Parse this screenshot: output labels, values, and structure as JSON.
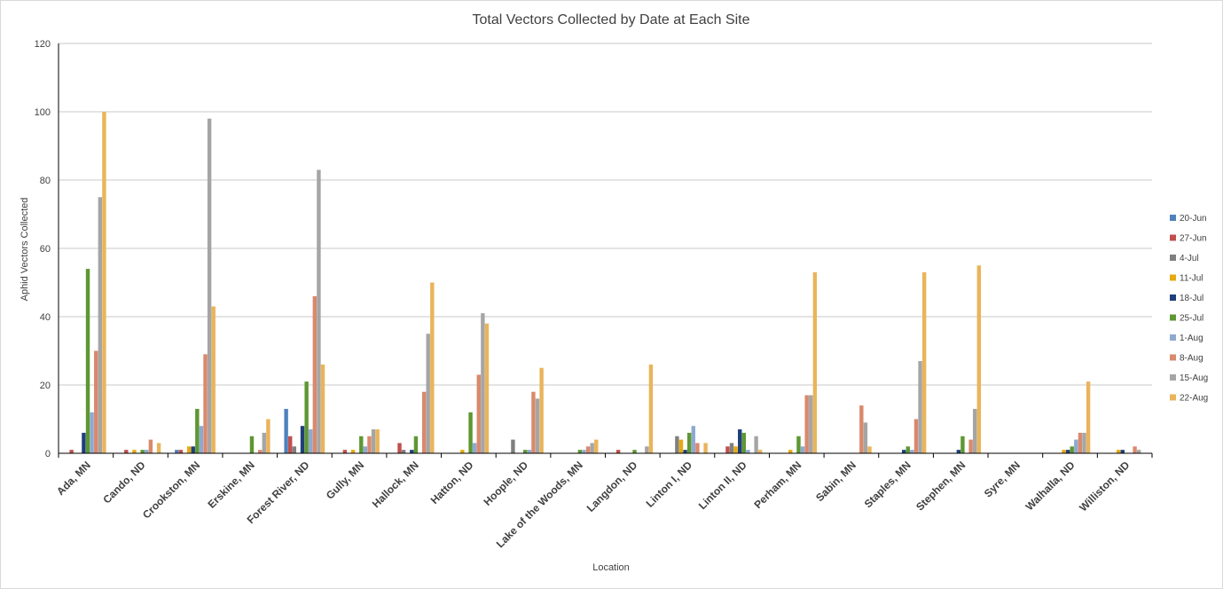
{
  "chart_data": {
    "type": "bar",
    "title": "Total Vectors Collected by Date at Each Site",
    "xlabel": "Location",
    "ylabel": "Aphid Vectors Collected",
    "ylim": [
      0,
      120
    ],
    "yticks": [
      0,
      20,
      40,
      60,
      80,
      100,
      120
    ],
    "grid": true,
    "legend_position": "right",
    "categories": [
      "Ada, MN",
      "Cando, ND",
      "Crookston, MN",
      "Erskine, MN",
      "Forest River, ND",
      "Gully, MN",
      "Hallock, MN",
      "Hatton, ND",
      "Hoople, ND",
      "Lake of the Woods, MN",
      "Langdon, ND",
      "Linton I, ND",
      "Linton II, ND",
      "Perham, MN",
      "Sabin, MN",
      "Staples, MN",
      "Stephen, MN",
      "Syre, MN",
      "Walhalla, ND",
      "Williston, ND"
    ],
    "series": [
      {
        "name": "20-Jun",
        "color": "#4F81BD",
        "values": [
          0,
          0,
          1,
          0,
          13,
          0,
          0,
          0,
          0,
          0,
          0,
          0,
          0,
          0,
          0,
          0,
          0,
          0,
          0,
          0
        ]
      },
      {
        "name": "27-Jun",
        "color": "#C0504D",
        "values": [
          1,
          1,
          1,
          0,
          5,
          1,
          3,
          0,
          0,
          0,
          1,
          0,
          2,
          0,
          0,
          0,
          0,
          0,
          0,
          0
        ]
      },
      {
        "name": "4-Jul",
        "color": "#7F7F7F",
        "values": [
          0,
          0,
          0,
          0,
          2,
          0,
          1,
          0,
          4,
          0,
          0,
          5,
          3,
          0,
          0,
          0,
          0,
          0,
          0,
          0
        ]
      },
      {
        "name": "11-Jul",
        "color": "#E6A911",
        "values": [
          0,
          1,
          2,
          0,
          0,
          1,
          0,
          1,
          0,
          0,
          0,
          4,
          2,
          1,
          0,
          0,
          0,
          0,
          1,
          1
        ]
      },
      {
        "name": "18-Jul",
        "color": "#1F3F7A",
        "values": [
          6,
          0,
          2,
          0,
          8,
          0,
          1,
          0,
          0,
          0,
          0,
          1,
          7,
          0,
          0,
          1,
          1,
          0,
          1,
          1
        ]
      },
      {
        "name": "25-Jul",
        "color": "#5E9732",
        "values": [
          54,
          1,
          13,
          5,
          21,
          5,
          5,
          12,
          1,
          1,
          1,
          6,
          6,
          5,
          0,
          2,
          5,
          0,
          2,
          0
        ]
      },
      {
        "name": "1-Aug",
        "color": "#8EA9D0",
        "values": [
          12,
          1,
          8,
          0,
          7,
          2,
          0,
          3,
          1,
          1,
          0,
          8,
          1,
          2,
          0,
          1,
          0,
          0,
          4,
          0
        ]
      },
      {
        "name": "8-Aug",
        "color": "#D9896C",
        "values": [
          30,
          4,
          29,
          1,
          46,
          5,
          18,
          23,
          18,
          2,
          0,
          3,
          0,
          17,
          14,
          10,
          4,
          0,
          6,
          2
        ]
      },
      {
        "name": "15-Aug",
        "color": "#A5A5A5",
        "values": [
          75,
          0,
          98,
          6,
          83,
          7,
          35,
          41,
          16,
          3,
          2,
          0,
          5,
          17,
          9,
          27,
          13,
          0,
          6,
          1
        ]
      },
      {
        "name": "22-Aug",
        "color": "#E9B45B",
        "values": [
          100,
          3,
          43,
          10,
          26,
          7,
          50,
          38,
          25,
          4,
          26,
          3,
          1,
          53,
          2,
          53,
          55,
          0,
          21,
          0
        ]
      }
    ]
  }
}
